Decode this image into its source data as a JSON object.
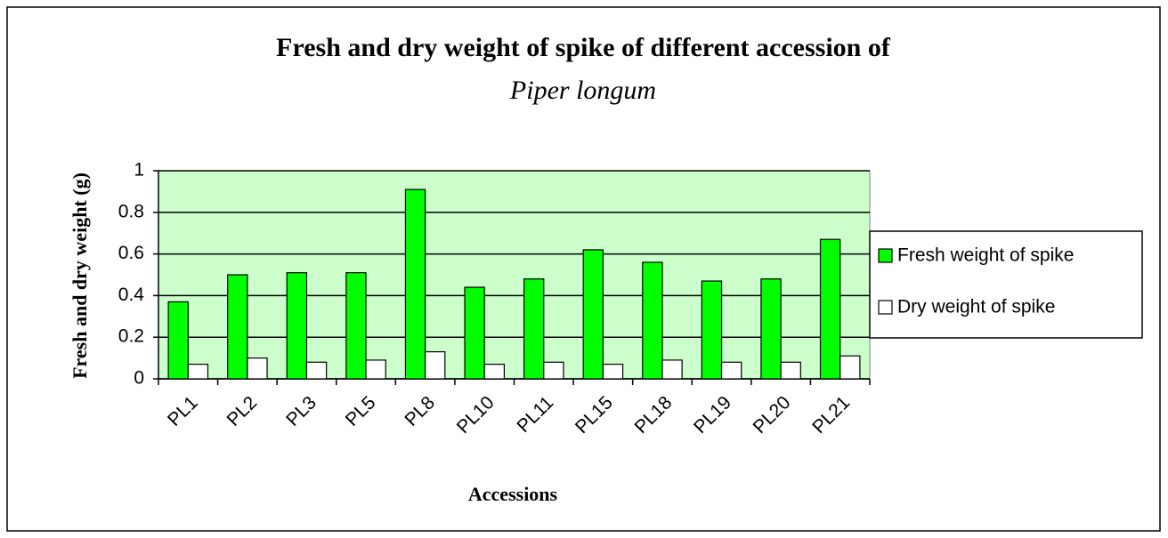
{
  "chart_data": {
    "type": "bar",
    "title": [
      "Fresh and dry weight of spike of different accession of",
      "Piper longum"
    ],
    "xlabel": "Accessions",
    "ylabel": "Fresh and dry weight (g)",
    "categories": [
      "PL1",
      "PL2",
      "PL3",
      "PL5",
      "PL8",
      "PL10",
      "PL11",
      "PL15",
      "PL18",
      "PL19",
      "PL20",
      "PL21"
    ],
    "series": [
      {
        "name": "Fresh weight of spike",
        "color": "#00ff00",
        "values": [
          0.37,
          0.5,
          0.51,
          0.51,
          0.91,
          0.44,
          0.48,
          0.62,
          0.56,
          0.47,
          0.48,
          0.67
        ]
      },
      {
        "name": "Dry weight of spike",
        "color": "#ffffff",
        "values": [
          0.07,
          0.1,
          0.08,
          0.09,
          0.13,
          0.07,
          0.08,
          0.07,
          0.09,
          0.08,
          0.08,
          0.11
        ]
      }
    ],
    "ylim": [
      0,
      1
    ],
    "yticks": [
      0,
      0.2,
      0.4,
      0.6,
      0.8,
      1
    ],
    "grid": true,
    "legend": "right",
    "plot_background": "#ccffcc"
  }
}
